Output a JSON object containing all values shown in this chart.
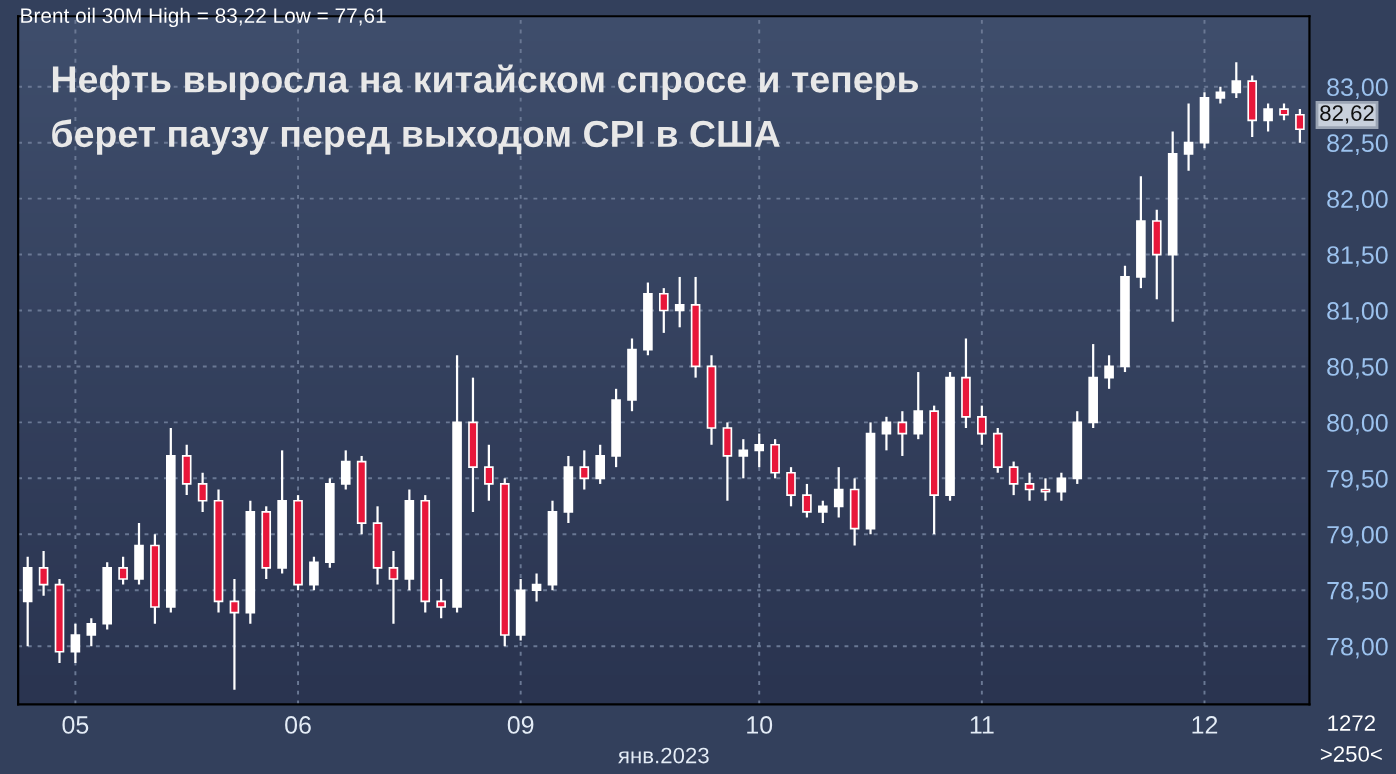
{
  "chart_data": {
    "type": "candlestick",
    "title": "Нефть выросла на китайском спросе и теперь\nберет паузу перед выходом CPI в США",
    "xlabel": "янв.2023",
    "annotations": [
      "Brent oil 30M High = 83,22 Low = 77,61",
      "82,62",
      "1272",
      ">250<"
    ],
    "categories": [
      null,
      null,
      null,
      "05",
      null,
      null,
      null,
      null,
      null,
      null,
      null,
      null,
      null,
      null,
      null,
      null,
      null,
      "06",
      null,
      null,
      null,
      null,
      null,
      null,
      null,
      null,
      null,
      null,
      null,
      null,
      null,
      "09",
      null,
      null,
      null,
      null,
      null,
      null,
      null,
      null,
      null,
      null,
      null,
      null,
      null,
      null,
      "10",
      null,
      null,
      null,
      null,
      null,
      null,
      null,
      null,
      null,
      null,
      null,
      null,
      null,
      "11",
      null,
      null,
      null,
      null,
      null,
      null,
      null,
      null,
      null,
      null,
      null,
      null,
      null,
      "12",
      null,
      null,
      null,
      null,
      null,
      null
    ],
    "ohlc": [
      [
        78.4,
        78.8,
        78.0,
        78.7
      ],
      [
        78.7,
        78.85,
        78.45,
        78.55
      ],
      [
        78.55,
        78.6,
        77.85,
        77.95
      ],
      [
        77.95,
        78.2,
        77.85,
        78.1
      ],
      [
        78.1,
        78.25,
        78.0,
        78.2
      ],
      [
        78.2,
        78.75,
        78.15,
        78.7
      ],
      [
        78.7,
        78.8,
        78.55,
        78.6
      ],
      [
        78.6,
        79.1,
        78.55,
        78.9
      ],
      [
        78.9,
        79.0,
        78.2,
        78.35
      ],
      [
        78.35,
        79.95,
        78.3,
        79.7
      ],
      [
        79.7,
        79.8,
        79.35,
        79.45
      ],
      [
        79.45,
        79.55,
        79.2,
        79.3
      ],
      [
        79.3,
        79.4,
        78.3,
        78.4
      ],
      [
        78.4,
        78.6,
        77.61,
        78.3
      ],
      [
        78.3,
        79.3,
        78.2,
        79.2
      ],
      [
        79.2,
        79.25,
        78.6,
        78.7
      ],
      [
        78.7,
        79.75,
        78.65,
        79.3
      ],
      [
        79.3,
        79.35,
        78.5,
        78.55
      ],
      [
        78.55,
        78.8,
        78.5,
        78.75
      ],
      [
        78.75,
        79.5,
        78.7,
        79.45
      ],
      [
        79.45,
        79.75,
        79.4,
        79.65
      ],
      [
        79.65,
        79.7,
        79.0,
        79.1
      ],
      [
        79.1,
        79.25,
        78.55,
        78.7
      ],
      [
        78.7,
        78.85,
        78.2,
        78.6
      ],
      [
        78.6,
        79.4,
        78.5,
        79.3
      ],
      [
        79.3,
        79.35,
        78.3,
        78.4
      ],
      [
        78.4,
        78.6,
        78.25,
        78.35
      ],
      [
        78.35,
        80.6,
        78.3,
        80.0
      ],
      [
        80.0,
        80.4,
        79.2,
        79.6
      ],
      [
        79.6,
        79.8,
        79.3,
        79.45
      ],
      [
        79.45,
        79.5,
        78.0,
        78.1
      ],
      [
        78.1,
        78.6,
        78.05,
        78.5
      ],
      [
        78.5,
        78.65,
        78.4,
        78.55
      ],
      [
        78.55,
        79.3,
        78.5,
        79.2
      ],
      [
        79.2,
        79.7,
        79.1,
        79.6
      ],
      [
        79.6,
        79.75,
        79.4,
        79.5
      ],
      [
        79.5,
        79.8,
        79.45,
        79.7
      ],
      [
        79.7,
        80.3,
        79.6,
        80.2
      ],
      [
        80.2,
        80.75,
        80.1,
        80.65
      ],
      [
        80.65,
        81.25,
        80.6,
        81.15
      ],
      [
        81.15,
        81.2,
        80.8,
        81.0
      ],
      [
        81.0,
        81.3,
        80.85,
        81.05
      ],
      [
        81.05,
        81.3,
        80.4,
        80.5
      ],
      [
        80.5,
        80.6,
        79.8,
        79.95
      ],
      [
        79.95,
        80.0,
        79.3,
        79.7
      ],
      [
        79.7,
        79.85,
        79.5,
        79.75
      ],
      [
        79.75,
        79.9,
        79.6,
        79.8
      ],
      [
        79.8,
        79.85,
        79.5,
        79.55
      ],
      [
        79.55,
        79.6,
        79.25,
        79.35
      ],
      [
        79.35,
        79.45,
        79.15,
        79.2
      ],
      [
        79.2,
        79.3,
        79.1,
        79.25
      ],
      [
        79.25,
        79.6,
        79.15,
        79.4
      ],
      [
        79.4,
        79.5,
        78.9,
        79.05
      ],
      [
        79.05,
        80.0,
        79.0,
        79.9
      ],
      [
        79.9,
        80.05,
        79.75,
        80.0
      ],
      [
        80.0,
        80.1,
        79.7,
        79.9
      ],
      [
        79.9,
        80.45,
        79.85,
        80.1
      ],
      [
        80.1,
        80.15,
        79.0,
        79.35
      ],
      [
        79.35,
        80.45,
        79.3,
        80.4
      ],
      [
        80.4,
        80.75,
        79.95,
        80.05
      ],
      [
        80.05,
        80.15,
        79.8,
        79.9
      ],
      [
        79.9,
        79.95,
        79.55,
        79.6
      ],
      [
        79.6,
        79.65,
        79.35,
        79.45
      ],
      [
        79.45,
        79.55,
        79.3,
        79.4
      ],
      [
        79.4,
        79.5,
        79.3,
        79.38
      ],
      [
        79.38,
        79.55,
        79.3,
        79.5
      ],
      [
        79.5,
        80.1,
        79.45,
        80.0
      ],
      [
        80.0,
        80.7,
        79.95,
        80.4
      ],
      [
        80.4,
        80.6,
        80.3,
        80.5
      ],
      [
        80.5,
        81.4,
        80.45,
        81.3
      ],
      [
        81.3,
        82.2,
        81.2,
        81.8
      ],
      [
        81.8,
        81.9,
        81.1,
        81.5
      ],
      [
        81.5,
        82.6,
        80.9,
        82.4
      ],
      [
        82.4,
        82.85,
        82.25,
        82.5
      ],
      [
        82.5,
        82.95,
        82.45,
        82.9
      ],
      [
        82.9,
        83.0,
        82.85,
        82.95
      ],
      [
        82.95,
        83.22,
        82.9,
        83.05
      ],
      [
        83.05,
        83.1,
        82.55,
        82.7
      ],
      [
        82.7,
        82.85,
        82.6,
        82.8
      ],
      [
        82.8,
        82.85,
        82.7,
        82.75
      ],
      [
        82.75,
        82.8,
        82.5,
        82.62
      ]
    ],
    "ylim": [
      77.48,
      83.63
    ],
    "yticks": [
      {
        "value": 78,
        "label": "78,00"
      },
      {
        "value": 78.5,
        "label": "78,50"
      },
      {
        "value": 79,
        "label": "79,00"
      },
      {
        "value": 79.5,
        "label": "79,50"
      },
      {
        "value": 80,
        "label": "80,00"
      },
      {
        "value": 80.5,
        "label": "80,50"
      },
      {
        "value": 81,
        "label": "81,00"
      },
      {
        "value": 81.5,
        "label": "81,50"
      },
      {
        "value": 82,
        "label": "82,00"
      },
      {
        "value": 82.5,
        "label": "82,50"
      },
      {
        "value": 83,
        "label": "83,00"
      }
    ],
    "grid": true
  }
}
